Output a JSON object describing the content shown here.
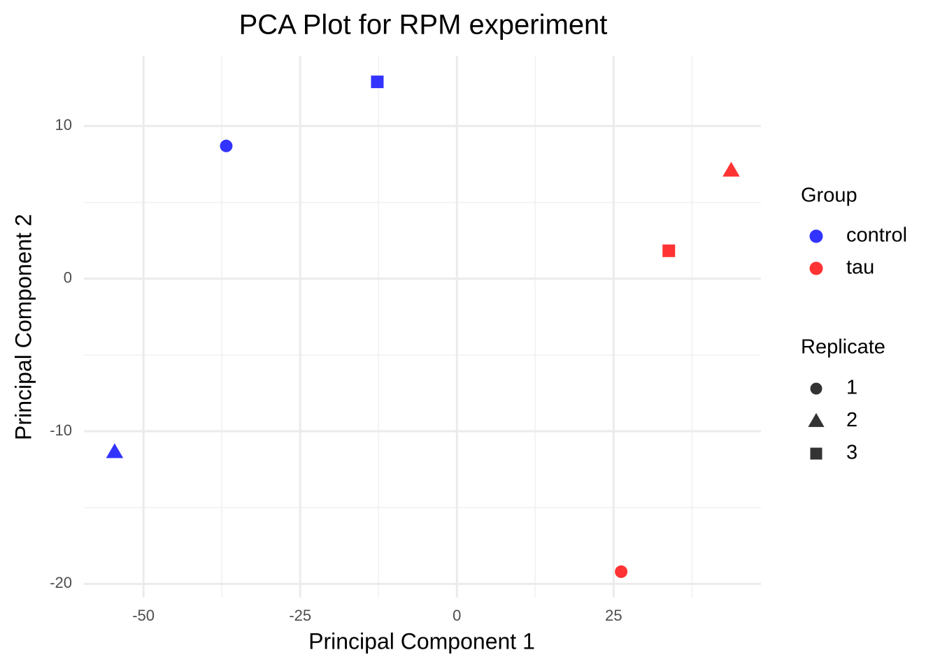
{
  "chart_data": {
    "type": "scatter",
    "title": "PCA Plot for RPM experiment",
    "x_label": "Principal Component 1",
    "y_label": "Principal Component 2",
    "xlim": [
      -59.5,
      48.5
    ],
    "ylim": [
      -20.9,
      14.6
    ],
    "xticks": [
      -50,
      -25,
      0,
      25
    ],
    "yticks": [
      -20,
      -10,
      0,
      10
    ],
    "x_minor_grid": [
      -37.5,
      -12.5,
      12.5,
      37.5
    ],
    "y_minor_grid": [
      -15,
      -5,
      5
    ],
    "grid": true,
    "legend_title": "Group",
    "series": [
      {
        "name": "control",
        "color": "#3333ff",
        "x": [
          -36.8,
          -54.6,
          -12.7
        ],
        "values": [
          8.7,
          -11.35,
          12.9
        ]
      },
      {
        "name": "tau",
        "color": "#ff3333",
        "x": [
          26.2,
          43.75,
          33.8
        ],
        "values": [
          -19.2,
          7.1,
          1.83
        ]
      }
    ],
    "shape_legend_title": "Replicate",
    "shape_names": [
      "1",
      "2",
      "3"
    ],
    "shape_markers": [
      "circle",
      "triangle",
      "square"
    ],
    "shape_legend_color": "#333333"
  }
}
